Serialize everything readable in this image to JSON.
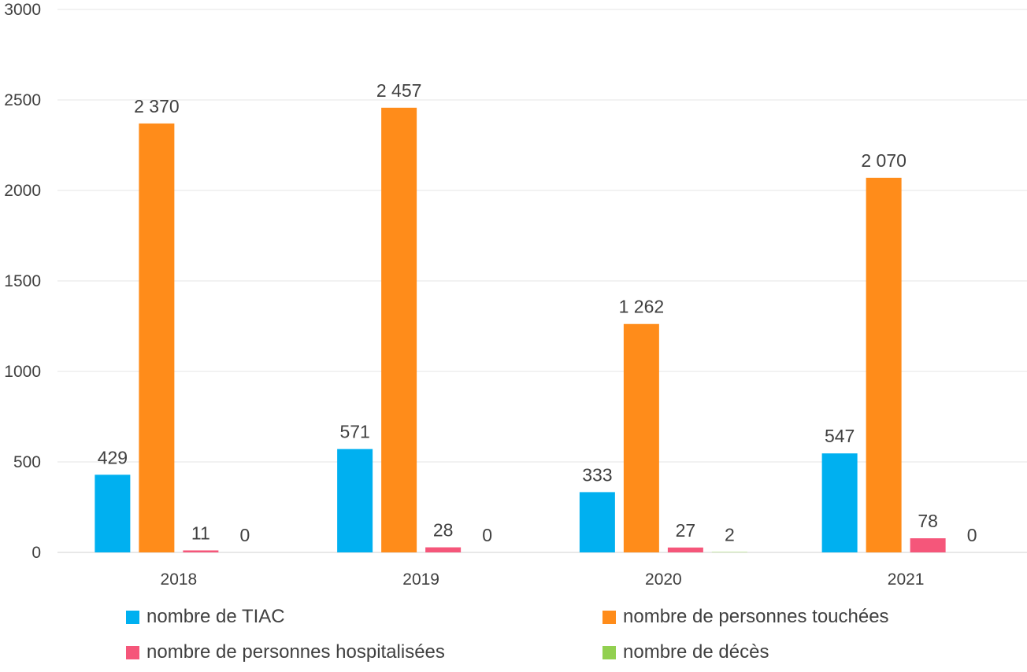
{
  "chart_data": {
    "type": "bar",
    "categories": [
      "2018",
      "2019",
      "2020",
      "2021"
    ],
    "series": [
      {
        "name": "nombre de TIAC",
        "color": "#00B0F0",
        "values": [
          429,
          571,
          333,
          547
        ],
        "labels": [
          "429",
          "571",
          "333",
          "547"
        ]
      },
      {
        "name": "nombre de personnes touchées",
        "color": "#FF8C1A",
        "values": [
          2370,
          2457,
          1262,
          2070
        ],
        "labels": [
          "2 370",
          "2 457",
          "1 262",
          "2 070"
        ]
      },
      {
        "name": "nombre de personnes hospitalisées",
        "color": "#F5567A",
        "values": [
          11,
          28,
          27,
          78
        ],
        "labels": [
          "11",
          "28",
          "27",
          "78"
        ]
      },
      {
        "name": "nombre de décès",
        "color": "#92D050",
        "values": [
          0,
          0,
          2,
          0
        ],
        "labels": [
          "0",
          "0",
          "2",
          "0"
        ]
      }
    ],
    "yticks": [
      "0",
      "500",
      "1000",
      "1500",
      "2000",
      "2500",
      "3000"
    ],
    "ylim": [
      0,
      3000
    ],
    "grid": true,
    "legend_position": "bottom"
  }
}
